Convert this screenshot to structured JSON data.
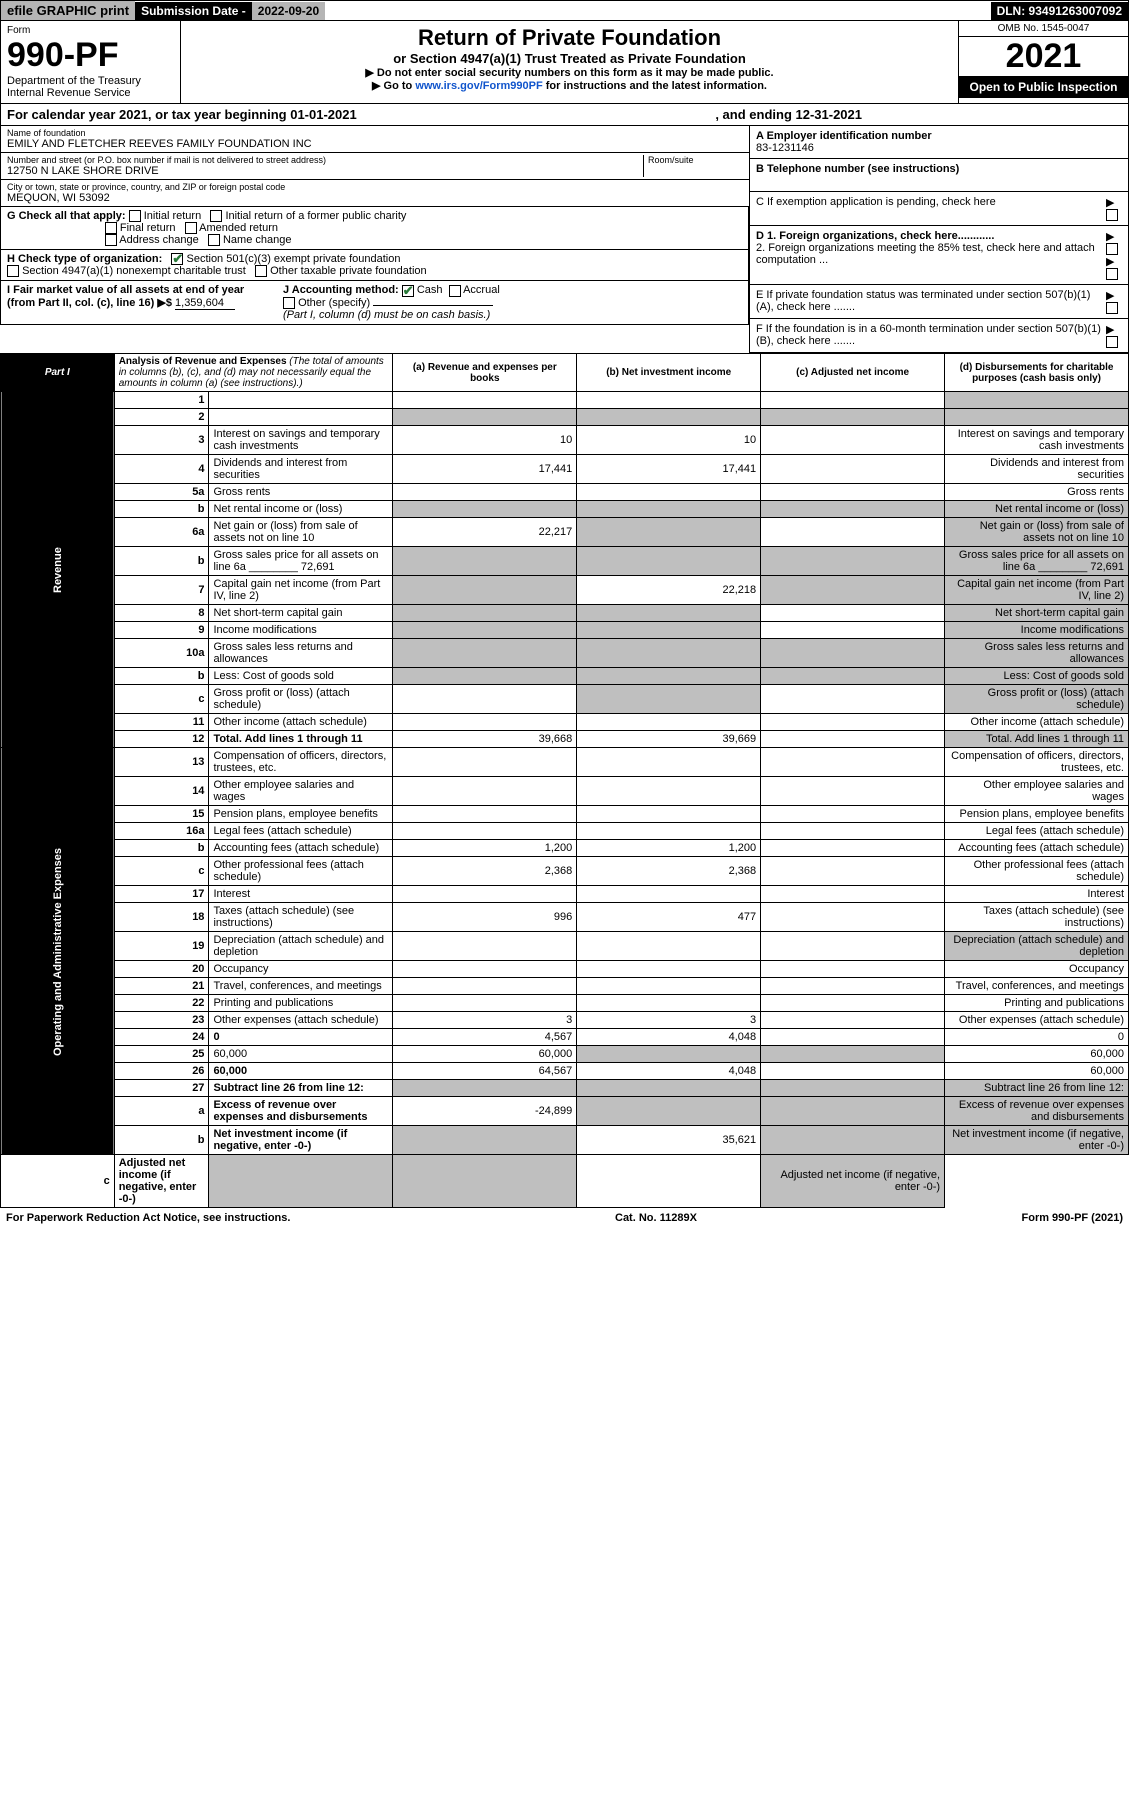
{
  "topbar": {
    "efile": "efile GRAPHIC print",
    "subdate_label": "Submission Date - ",
    "subdate_value": "2022-09-20",
    "dln": "DLN: 93491263007092"
  },
  "header": {
    "form_word": "Form",
    "form_no": "990-PF",
    "dept": "Department of the Treasury",
    "irs": "Internal Revenue Service",
    "title": "Return of Private Foundation",
    "subtitle": "or Section 4947(a)(1) Trust Treated as Private Foundation",
    "note1": "▶ Do not enter social security numbers on this form as it may be made public.",
    "note2_pre": "▶ Go to ",
    "note2_link": "www.irs.gov/Form990PF",
    "note2_post": " for instructions and the latest information.",
    "omb": "OMB No. 1545-0047",
    "year": "2021",
    "open": "Open to Public Inspection"
  },
  "ty": {
    "text": "For calendar year 2021, or tax year beginning 01-01-2021",
    "end": ", and ending 12-31-2021"
  },
  "name_block": {
    "lbl": "Name of foundation",
    "val": "EMILY AND FLETCHER REEVES FAMILY FOUNDATION INC"
  },
  "addr_block": {
    "lbl": "Number and street (or P.O. box number if mail is not delivered to street address)",
    "val": "12750 N LAKE SHORE DRIVE",
    "room_lbl": "Room/suite"
  },
  "city_block": {
    "lbl": "City or town, state or province, country, and ZIP or foreign postal code",
    "val": "MEQUON, WI  53092"
  },
  "ein_block": {
    "lbl": "A Employer identification number",
    "val": "83-1231146"
  },
  "tel_block": {
    "lbl": "B Telephone number (see instructions)"
  },
  "C": "C If exemption application is pending, check here",
  "D1": "D 1. Foreign organizations, check here............",
  "D2": "2. Foreign organizations meeting the 85% test, check here and attach computation ...",
  "E": "E  If private foundation status was terminated under section 507(b)(1)(A), check here .......",
  "F": "F  If the foundation is in a 60-month termination under section 507(b)(1)(B), check here .......",
  "G": {
    "lbl": "G Check all that apply:",
    "o1": "Initial return",
    "o2": "Final return",
    "o3": "Address change",
    "o4": "Initial return of a former public charity",
    "o5": "Amended return",
    "o6": "Name change"
  },
  "H": {
    "lbl": "H Check type of organization:",
    "o1": "Section 501(c)(3) exempt private foundation",
    "o2": "Section 4947(a)(1) nonexempt charitable trust",
    "o3": "Other taxable private foundation"
  },
  "I": {
    "lbl": "I Fair market value of all assets at end of year (from Part II, col. (c), line 16) ▶$",
    "val": "1,359,604"
  },
  "J": {
    "lbl": "J Accounting method:",
    "o1": "Cash",
    "o2": "Accrual",
    "o3": "Other (specify)",
    "note": "(Part I, column (d) must be on cash basis.)"
  },
  "part1": {
    "label": "Part I",
    "title": "Analysis of Revenue and Expenses",
    "title_note": " (The total of amounts in columns (b), (c), and (d) may not necessarily equal the amounts in column (a) (see instructions).)",
    "col_a": "(a)  Revenue and expenses per books",
    "col_b": "(b)  Net investment income",
    "col_c": "(c)  Adjusted net income",
    "col_d": "(d)  Disbursements for charitable purposes (cash basis only)"
  },
  "side": {
    "rev": "Revenue",
    "exp": "Operating and Administrative Expenses"
  },
  "rows": [
    {
      "n": "1",
      "d": "",
      "a": "",
      "b": "",
      "c": "",
      "dgrey": true
    },
    {
      "n": "2",
      "d": "",
      "a": "",
      "b": "",
      "c": "",
      "bgrey": true,
      "cgrey": true,
      "dgrey": true,
      "agrey": true,
      "bold_not": true
    },
    {
      "n": "3",
      "d": "Interest on savings and temporary cash investments",
      "a": "10",
      "b": "10"
    },
    {
      "n": "4",
      "d": "Dividends and interest from securities",
      "a": "17,441",
      "b": "17,441"
    },
    {
      "n": "5a",
      "d": "Gross rents"
    },
    {
      "n": "b",
      "d": "Net rental income or (loss)",
      "agrey": true,
      "bgrey": true,
      "cgrey": true,
      "dgrey": true
    },
    {
      "n": "6a",
      "d": "Net gain or (loss) from sale of assets not on line 10",
      "a": "22,217",
      "bgrey": true,
      "dgrey": true
    },
    {
      "n": "b",
      "d": "Gross sales price for all assets on line 6a ________ 72,691",
      "agrey": true,
      "bgrey": true,
      "cgrey": true,
      "dgrey": true
    },
    {
      "n": "7",
      "d": "Capital gain net income (from Part IV, line 2)",
      "agrey": true,
      "b": "22,218",
      "cgrey": true,
      "dgrey": true
    },
    {
      "n": "8",
      "d": "Net short-term capital gain",
      "agrey": true,
      "bgrey": true,
      "dgrey": true
    },
    {
      "n": "9",
      "d": "Income modifications",
      "agrey": true,
      "bgrey": true,
      "dgrey": true
    },
    {
      "n": "10a",
      "d": "Gross sales less returns and allowances",
      "agrey": true,
      "bgrey": true,
      "cgrey": true,
      "dgrey": true
    },
    {
      "n": "b",
      "d": "Less: Cost of goods sold",
      "agrey": true,
      "bgrey": true,
      "cgrey": true,
      "dgrey": true
    },
    {
      "n": "c",
      "d": "Gross profit or (loss) (attach schedule)",
      "bgrey": true,
      "dgrey": true
    },
    {
      "n": "11",
      "d": "Other income (attach schedule)"
    },
    {
      "n": "12",
      "d": "Total. Add lines 1 through 11",
      "a": "39,668",
      "b": "39,669",
      "dgrey": true,
      "bold": true
    },
    {
      "n": "13",
      "d": "Compensation of officers, directors, trustees, etc."
    },
    {
      "n": "14",
      "d": "Other employee salaries and wages"
    },
    {
      "n": "15",
      "d": "Pension plans, employee benefits"
    },
    {
      "n": "16a",
      "d": "Legal fees (attach schedule)"
    },
    {
      "n": "b",
      "d": "Accounting fees (attach schedule)",
      "a": "1,200",
      "b": "1,200"
    },
    {
      "n": "c",
      "d": "Other professional fees (attach schedule)",
      "a": "2,368",
      "b": "2,368"
    },
    {
      "n": "17",
      "d": "Interest"
    },
    {
      "n": "18",
      "d": "Taxes (attach schedule) (see instructions)",
      "a": "996",
      "b": "477"
    },
    {
      "n": "19",
      "d": "Depreciation (attach schedule) and depletion",
      "dgrey": true
    },
    {
      "n": "20",
      "d": "Occupancy"
    },
    {
      "n": "21",
      "d": "Travel, conferences, and meetings"
    },
    {
      "n": "22",
      "d": "Printing and publications"
    },
    {
      "n": "23",
      "d": "Other expenses (attach schedule)",
      "a": "3",
      "b": "3"
    },
    {
      "n": "24",
      "d": "0",
      "a": "4,567",
      "b": "4,048",
      "bold": true
    },
    {
      "n": "25",
      "d": "60,000",
      "a": "60,000",
      "bgrey": true,
      "cgrey": true
    },
    {
      "n": "26",
      "d": "60,000",
      "a": "64,567",
      "b": "4,048",
      "bold": true
    },
    {
      "n": "27",
      "d": "Subtract line 26 from line 12:",
      "agrey": true,
      "bgrey": true,
      "cgrey": true,
      "dgrey": true,
      "bold": true
    },
    {
      "n": "a",
      "d": "Excess of revenue over expenses and disbursements",
      "a": "-24,899",
      "bgrey": true,
      "cgrey": true,
      "dgrey": true,
      "bold": true
    },
    {
      "n": "b",
      "d": "Net investment income (if negative, enter -0-)",
      "agrey": true,
      "b": "35,621",
      "cgrey": true,
      "dgrey": true,
      "bold": true
    },
    {
      "n": "c",
      "d": "Adjusted net income (if negative, enter -0-)",
      "agrey": true,
      "bgrey": true,
      "dgrey": true,
      "bold": true
    }
  ],
  "footer": {
    "l": "For Paperwork Reduction Act Notice, see instructions.",
    "c": "Cat. No. 11289X",
    "r": "Form 990-PF (2021)"
  }
}
